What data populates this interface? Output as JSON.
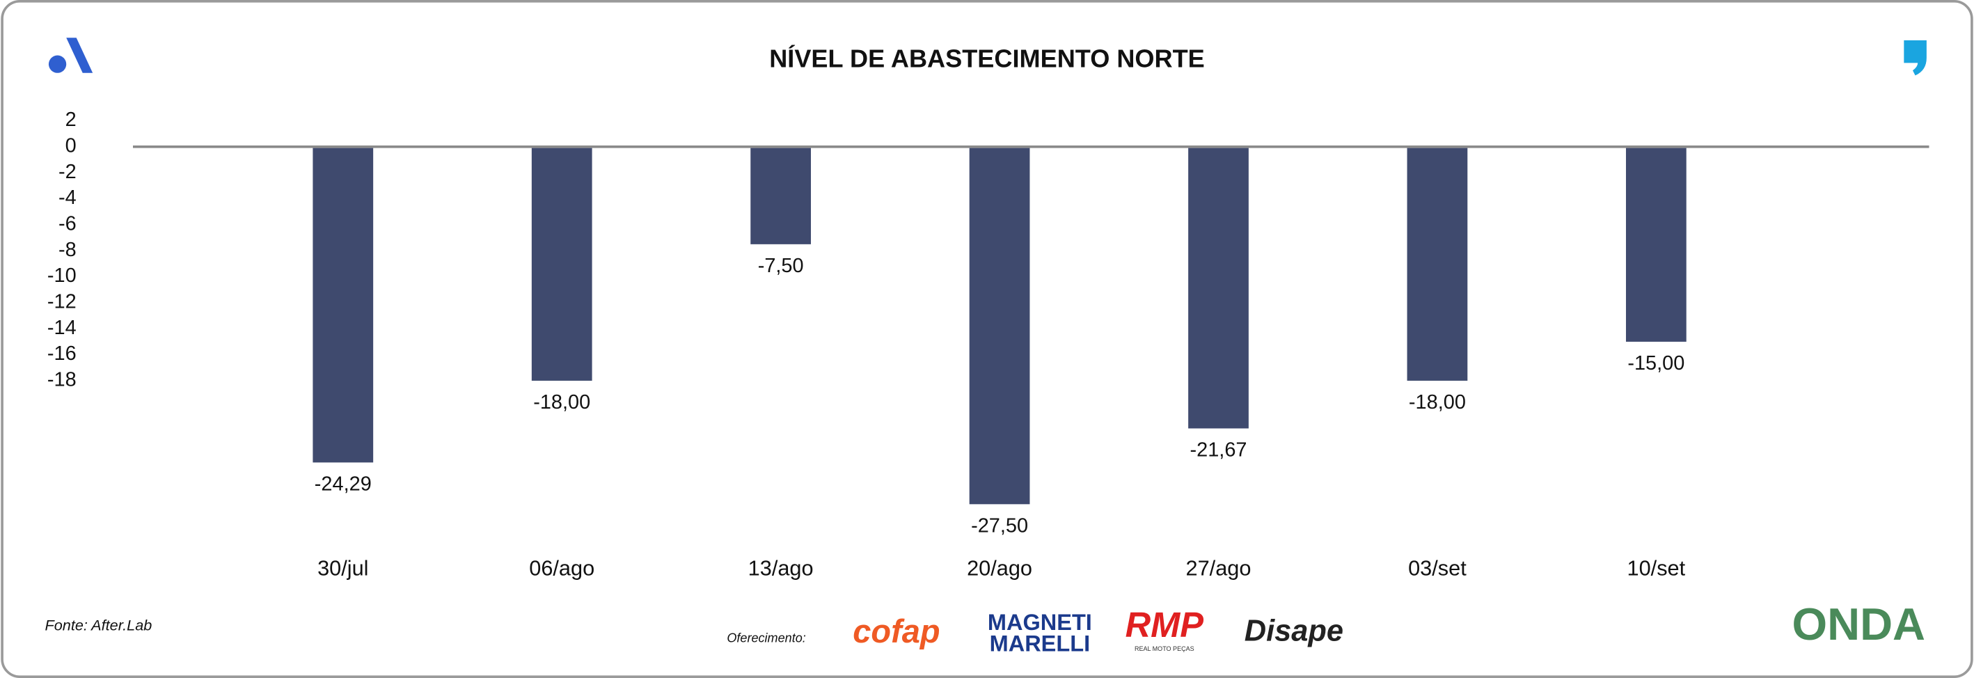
{
  "chart_data": {
    "type": "bar",
    "title": "NÍVEL DE ABASTECIMENTO NORTE",
    "categories": [
      "30/jul",
      "06/ago",
      "13/ago",
      "20/ago",
      "27/ago",
      "03/set",
      "10/set"
    ],
    "values": [
      -24.29,
      -18,
      -7.5,
      -27.5,
      -21.67,
      -18,
      -15
    ],
    "value_labels": [
      "-24,29",
      "-18,00",
      "-7,50",
      "-27,50",
      "-21,67",
      "-18,00",
      "-15,00"
    ],
    "color": "#3f4a6e",
    "ylim": [
      2,
      -28
    ],
    "yticks": [
      2,
      0,
      -2,
      -4,
      -6,
      -8,
      -10,
      -12,
      -14,
      -16,
      -18
    ],
    "grid": false,
    "source": "Fonte: After.Lab",
    "sponsor_label": "Oferecimento:",
    "sponsors": [
      "cofap",
      "MAGNETI",
      "MARELLI",
      "RMP",
      "REAL MOTO PEÇAS",
      "Disape",
      "ONDA"
    ]
  }
}
